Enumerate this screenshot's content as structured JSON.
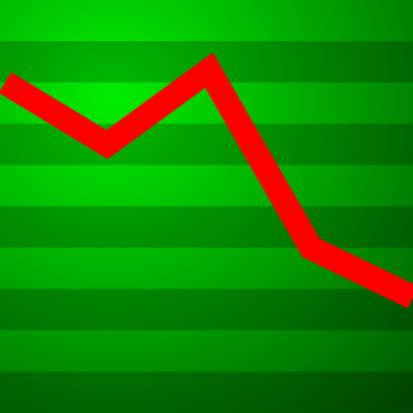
{
  "chart_data": {
    "type": "line",
    "title": "",
    "xlabel": "",
    "ylabel": "",
    "x": [
      0,
      1,
      2,
      3,
      4
    ],
    "series": [
      {
        "values": [
          8.0,
          6.5,
          8.3,
          4.0,
          2.8
        ]
      }
    ],
    "xlim": [
      -0.05,
      4.0
    ],
    "ylim": [
      0,
      10
    ],
    "grid": true,
    "legend": "none"
  },
  "colors": {
    "line": "#ff0000",
    "background_light": "#00ee00",
    "background_dark": "#005a00",
    "stripe_dark": "#007800",
    "stripe_light": "#00a800"
  }
}
